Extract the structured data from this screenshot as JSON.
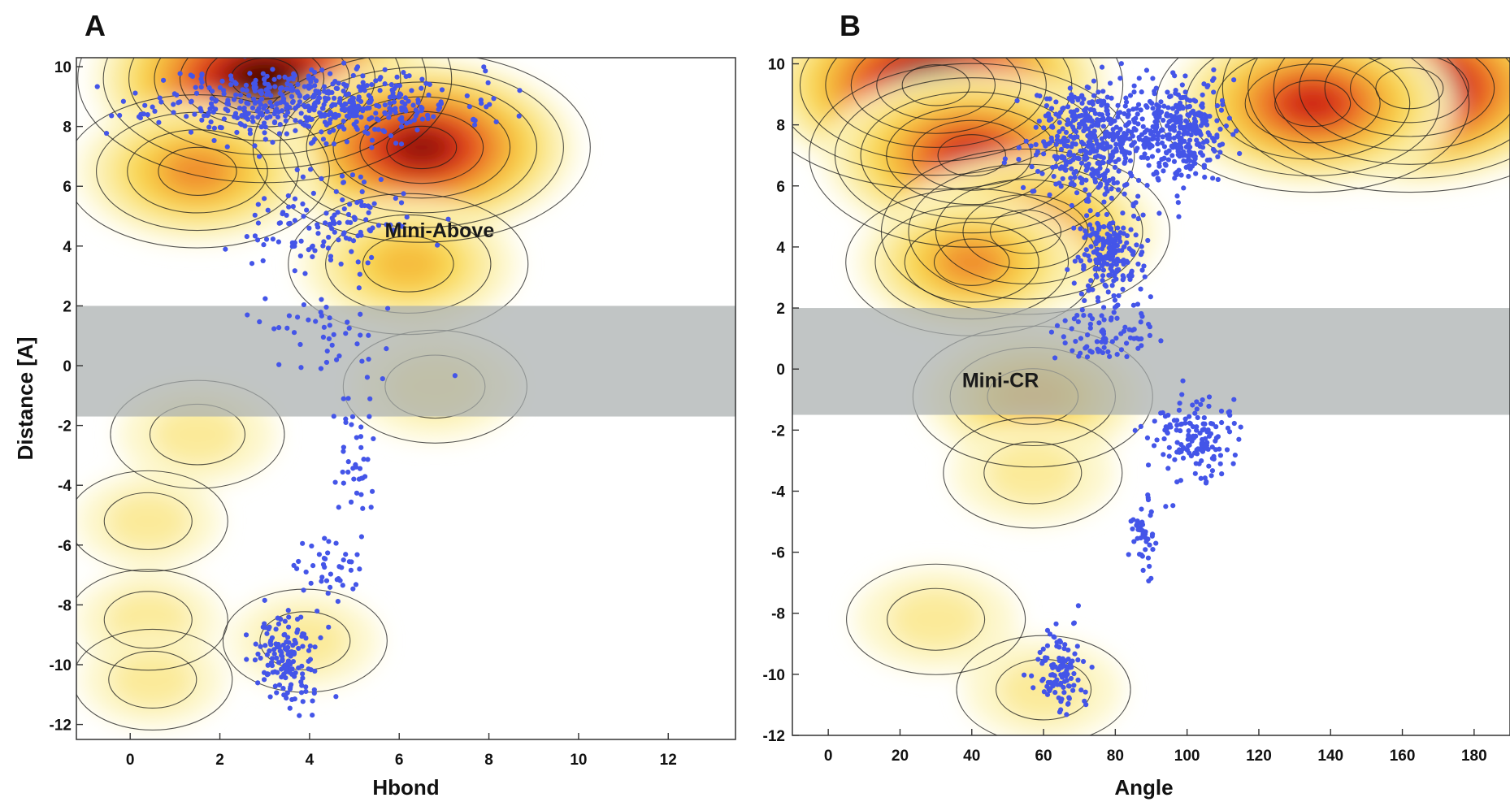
{
  "chart_data": [
    {
      "type": "scatter",
      "panel_label": "A",
      "xlabel": "Hbond",
      "ylabel": "Distance [A]",
      "xlim": [
        -1.2,
        13.5
      ],
      "ylim": [
        -12.5,
        10.3
      ],
      "x_ticks": [
        "0",
        "2",
        "4",
        "6",
        "8",
        "10",
        "12"
      ],
      "y_ticks": [
        "10",
        "8",
        "6",
        "4",
        "2",
        "0",
        "-2",
        "-4",
        "-6",
        "-8",
        "-10",
        "-12"
      ],
      "grid": false,
      "background": "density contour map (yellow to dark red)",
      "highlight_band": {
        "y_range": [
          -1.7,
          2.0
        ],
        "color": "#a9aeae"
      },
      "annotations": [
        {
          "text": "Mini-Above",
          "x": 6.9,
          "y": 4.3
        }
      ],
      "density_peaks": [
        {
          "x": 3.0,
          "y": 9.6,
          "level": 1.0
        },
        {
          "x": 6.5,
          "y": 7.3,
          "level": 0.85
        },
        {
          "x": 1.5,
          "y": 6.5,
          "level": 0.55
        },
        {
          "x": 6.2,
          "y": 3.4,
          "level": 0.45
        },
        {
          "x": 6.8,
          "y": -0.7,
          "level": 0.22
        },
        {
          "x": 1.5,
          "y": -2.3,
          "level": 0.18
        },
        {
          "x": 0.4,
          "y": -5.2,
          "level": 0.12
        },
        {
          "x": 0.4,
          "y": -8.5,
          "level": 0.12
        },
        {
          "x": 0.5,
          "y": -10.5,
          "level": 0.12
        },
        {
          "x": 3.9,
          "y": -9.2,
          "level": 0.14
        }
      ],
      "series": [
        {
          "name": "",
          "color": "#4455e8",
          "clusters": [
            {
              "cx": 4.0,
              "cy": 8.8,
              "sx": 2.8,
              "sy": 1.0,
              "n": 520
            },
            {
              "cx": 4.5,
              "cy": 4.8,
              "sx": 1.4,
              "sy": 1.3,
              "n": 130
            },
            {
              "cx": 4.2,
              "cy": 1.0,
              "sx": 1.1,
              "sy": 1.4,
              "n": 45
            },
            {
              "cx": 5.0,
              "cy": -2.8,
              "sx": 0.4,
              "sy": 1.6,
              "n": 40
            },
            {
              "cx": 4.4,
              "cy": -6.8,
              "sx": 0.6,
              "sy": 1.0,
              "n": 40
            },
            {
              "cx": 3.5,
              "cy": -9.8,
              "sx": 0.6,
              "sy": 1.3,
              "n": 150
            }
          ]
        }
      ]
    },
    {
      "type": "scatter",
      "panel_label": "B",
      "xlabel": "Angle",
      "ylabel": "",
      "xlim": [
        -10,
        190
      ],
      "ylim": [
        -12,
        10.2
      ],
      "x_ticks": [
        "0",
        "20",
        "40",
        "60",
        "80",
        "100",
        "120",
        "140",
        "160",
        "180"
      ],
      "y_ticks": [
        "10",
        "8",
        "6",
        "4",
        "2",
        "0",
        "-2",
        "-4",
        "-6",
        "-8",
        "-10",
        "-12"
      ],
      "grid": false,
      "background": "density contour map (yellow to dark red)",
      "highlight_band": {
        "y_range": [
          -1.5,
          2.0
        ],
        "color": "#a9aeae"
      },
      "annotations": [
        {
          "text": "Mini-CR",
          "x": 48,
          "y": -0.6
        }
      ],
      "density_peaks": [
        {
          "x": 30,
          "y": 9.3,
          "level": 1.0
        },
        {
          "x": 162,
          "y": 9.2,
          "level": 1.0
        },
        {
          "x": 135,
          "y": 8.7,
          "level": 0.75
        },
        {
          "x": 40,
          "y": 7.0,
          "level": 0.8
        },
        {
          "x": 55,
          "y": 4.5,
          "level": 0.65
        },
        {
          "x": 40,
          "y": 3.5,
          "level": 0.5
        },
        {
          "x": 57,
          "y": -0.9,
          "level": 0.45
        },
        {
          "x": 57,
          "y": -3.4,
          "level": 0.2
        },
        {
          "x": 30,
          "y": -8.2,
          "level": 0.2
        },
        {
          "x": 60,
          "y": -10.5,
          "level": 0.18
        }
      ],
      "series": [
        {
          "name": "",
          "color": "#4455e8",
          "clusters": [
            {
              "cx": 75,
              "cy": 7.5,
              "sx": 16,
              "sy": 1.6,
              "n": 500
            },
            {
              "cx": 100,
              "cy": 7.8,
              "sx": 9,
              "sy": 1.3,
              "n": 260
            },
            {
              "cx": 78,
              "cy": 3.8,
              "sx": 7,
              "sy": 1.0,
              "n": 200
            },
            {
              "cx": 77,
              "cy": 1.2,
              "sx": 11,
              "sy": 0.9,
              "n": 90
            },
            {
              "cx": 102,
              "cy": -2.3,
              "sx": 10,
              "sy": 1.1,
              "n": 150
            },
            {
              "cx": 88,
              "cy": -5.5,
              "sx": 4,
              "sy": 1.1,
              "n": 45
            },
            {
              "cx": 65,
              "cy": -10.0,
              "sx": 6,
              "sy": 1.2,
              "n": 110
            }
          ]
        }
      ]
    }
  ]
}
